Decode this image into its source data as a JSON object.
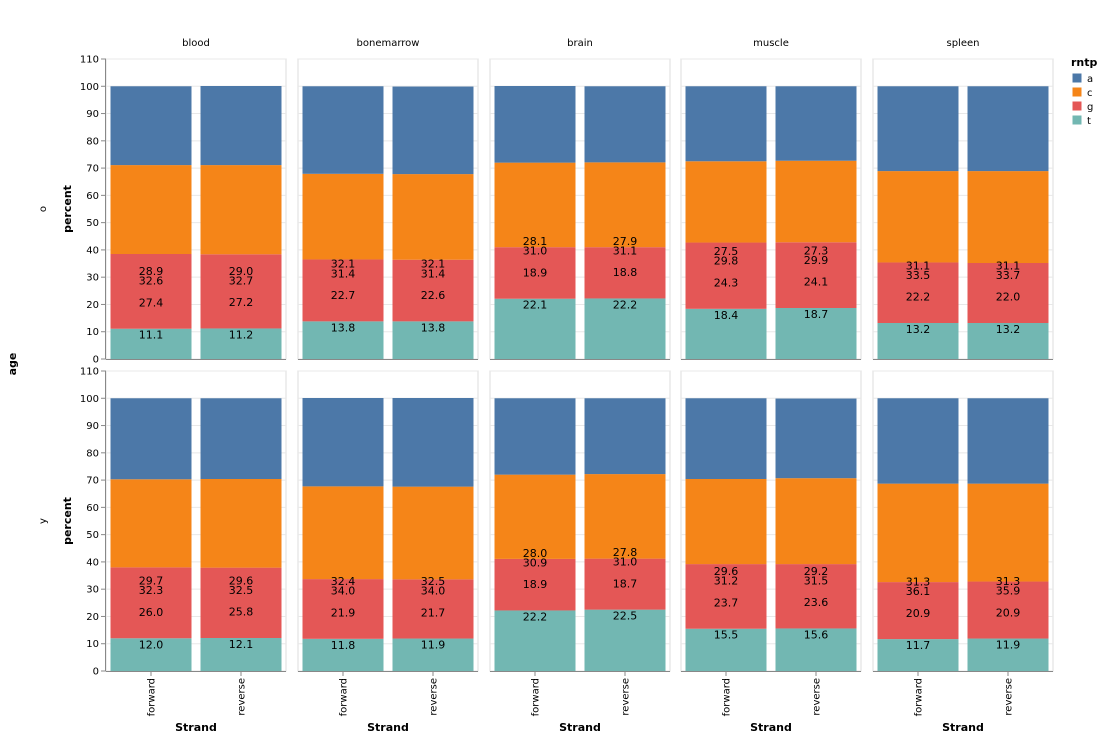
{
  "chart_data": {
    "type": "bar",
    "stacked": true,
    "column_facet_title": "",
    "column_facets": [
      "blood",
      "bonemarrow",
      "brain",
      "muscle",
      "spleen"
    ],
    "row_facet_title": "age",
    "row_facets": [
      "o",
      "y"
    ],
    "categories": [
      "forward",
      "reverse"
    ],
    "xlabel": "Strand",
    "ylabel": "percent",
    "ylim": [
      0,
      110
    ],
    "yticks": [
      0,
      10,
      20,
      30,
      40,
      50,
      60,
      70,
      80,
      90,
      100,
      110
    ],
    "legend": {
      "title": "rntp",
      "position": "top-right",
      "entries": [
        {
          "name": "a",
          "color": "#4c78a8"
        },
        {
          "name": "c",
          "color": "#f58518"
        },
        {
          "name": "g",
          "color": "#e45756"
        },
        {
          "name": "t",
          "color": "#72b7b2"
        }
      ]
    },
    "panels": [
      {
        "row": "o",
        "column": "blood",
        "bars": [
          {
            "category": "forward",
            "t": 11.1,
            "g": 27.4,
            "c": 32.6,
            "a": 28.9
          },
          {
            "category": "reverse",
            "t": 11.2,
            "g": 27.2,
            "c": 32.7,
            "a": 29.0
          }
        ]
      },
      {
        "row": "o",
        "column": "bonemarrow",
        "bars": [
          {
            "category": "forward",
            "t": 13.8,
            "g": 22.7,
            "c": 31.4,
            "a": 32.1
          },
          {
            "category": "reverse",
            "t": 13.8,
            "g": 22.6,
            "c": 31.4,
            "a": 32.1
          }
        ]
      },
      {
        "row": "o",
        "column": "brain",
        "bars": [
          {
            "category": "forward",
            "t": 22.1,
            "g": 18.9,
            "c": 31.0,
            "a": 28.1
          },
          {
            "category": "reverse",
            "t": 22.2,
            "g": 18.8,
            "c": 31.1,
            "a": 27.9
          }
        ]
      },
      {
        "row": "o",
        "column": "muscle",
        "bars": [
          {
            "category": "forward",
            "t": 18.4,
            "g": 24.3,
            "c": 29.8,
            "a": 27.5
          },
          {
            "category": "reverse",
            "t": 18.7,
            "g": 24.1,
            "c": 29.9,
            "a": 27.3
          }
        ]
      },
      {
        "row": "o",
        "column": "spleen",
        "bars": [
          {
            "category": "forward",
            "t": 13.2,
            "g": 22.2,
            "c": 33.5,
            "a": 31.1
          },
          {
            "category": "reverse",
            "t": 13.2,
            "g": 22.0,
            "c": 33.7,
            "a": 31.1
          }
        ]
      },
      {
        "row": "y",
        "column": "blood",
        "bars": [
          {
            "category": "forward",
            "t": 12.0,
            "g": 26.0,
            "c": 32.3,
            "a": 29.7
          },
          {
            "category": "reverse",
            "t": 12.1,
            "g": 25.8,
            "c": 32.5,
            "a": 29.6
          }
        ]
      },
      {
        "row": "y",
        "column": "bonemarrow",
        "bars": [
          {
            "category": "forward",
            "t": 11.8,
            "g": 21.9,
            "c": 34.0,
            "a": 32.4
          },
          {
            "category": "reverse",
            "t": 11.9,
            "g": 21.7,
            "c": 34.0,
            "a": 32.5
          }
        ]
      },
      {
        "row": "y",
        "column": "brain",
        "bars": [
          {
            "category": "forward",
            "t": 22.2,
            "g": 18.9,
            "c": 30.9,
            "a": 28.0
          },
          {
            "category": "reverse",
            "t": 22.5,
            "g": 18.7,
            "c": 31.0,
            "a": 27.8
          }
        ]
      },
      {
        "row": "y",
        "column": "muscle",
        "bars": [
          {
            "category": "forward",
            "t": 15.5,
            "g": 23.7,
            "c": 31.2,
            "a": 29.6
          },
          {
            "category": "reverse",
            "t": 15.6,
            "g": 23.6,
            "c": 31.5,
            "a": 29.2
          }
        ]
      },
      {
        "row": "y",
        "column": "spleen",
        "bars": [
          {
            "category": "forward",
            "t": 11.7,
            "g": 20.9,
            "c": 36.1,
            "a": 31.3
          },
          {
            "category": "reverse",
            "t": 11.9,
            "g": 20.9,
            "c": 35.9,
            "a": 31.3
          }
        ]
      }
    ]
  }
}
